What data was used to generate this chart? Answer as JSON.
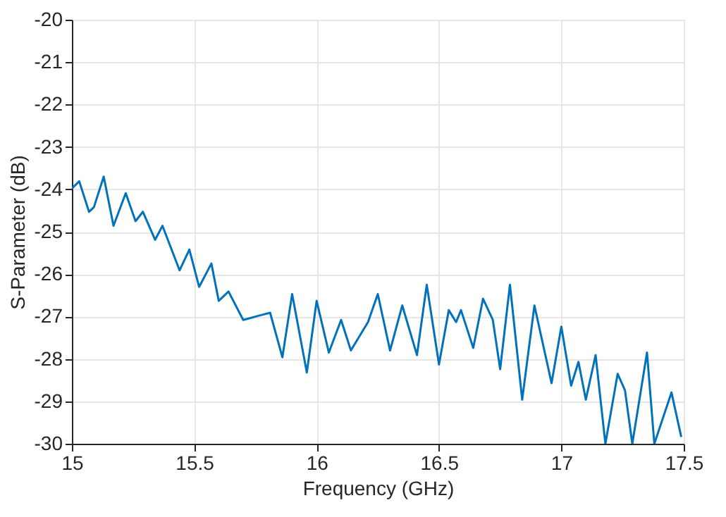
{
  "chart_data": {
    "type": "line",
    "xlabel": "Frequency (GHz)",
    "ylabel": "S-Parameter (dB)",
    "xlim": [
      15,
      17.5
    ],
    "xticks": [
      15,
      15.5,
      16,
      16.5,
      17,
      17.5
    ],
    "ylim": [
      -30,
      -20
    ],
    "yticks": [
      -30,
      -29,
      -28,
      -27,
      -26,
      -25,
      -24,
      -23,
      -22,
      -21,
      -20
    ],
    "grid": true,
    "marker": "none",
    "line_style": "solid",
    "series": [
      {
        "color": "#0072bd",
        "x": [
          15.0,
          15.03,
          15.07,
          15.09,
          15.13,
          15.17,
          15.22,
          15.26,
          15.29,
          15.34,
          15.37,
          15.44,
          15.48,
          15.52,
          15.57,
          15.6,
          15.64,
          15.7,
          15.77,
          15.81,
          15.86,
          15.9,
          15.96,
          16.0,
          16.05,
          16.1,
          16.14,
          16.21,
          16.25,
          16.3,
          16.35,
          16.41,
          16.45,
          16.5,
          16.54,
          16.57,
          16.59,
          16.64,
          16.68,
          16.72,
          16.75,
          16.79,
          16.84,
          16.89,
          16.96,
          17.0,
          17.04,
          17.07,
          17.1,
          17.14,
          17.18,
          17.23,
          17.26,
          17.29,
          17.35,
          17.38,
          17.45,
          17.49
        ],
        "values": [
          -23.98,
          -23.81,
          -24.53,
          -24.42,
          -23.7,
          -24.86,
          -24.09,
          -24.75,
          -24.53,
          -25.19,
          -24.86,
          -25.91,
          -25.42,
          -26.3,
          -25.75,
          -26.63,
          -26.41,
          -27.08,
          -26.97,
          -26.91,
          -27.96,
          -26.47,
          -28.32,
          -26.63,
          -27.85,
          -27.08,
          -27.8,
          -27.13,
          -26.47,
          -27.8,
          -26.74,
          -27.91,
          -26.25,
          -28.13,
          -26.85,
          -27.13,
          -26.85,
          -27.74,
          -26.58,
          -27.08,
          -28.24,
          -26.25,
          -28.96,
          -26.74,
          -28.57,
          -27.24,
          -28.63,
          -28.07,
          -28.96,
          -27.91,
          -30.0,
          -28.35,
          -28.74,
          -30.0,
          -27.85,
          -30.0,
          -28.79,
          -29.84
        ]
      }
    ]
  }
}
